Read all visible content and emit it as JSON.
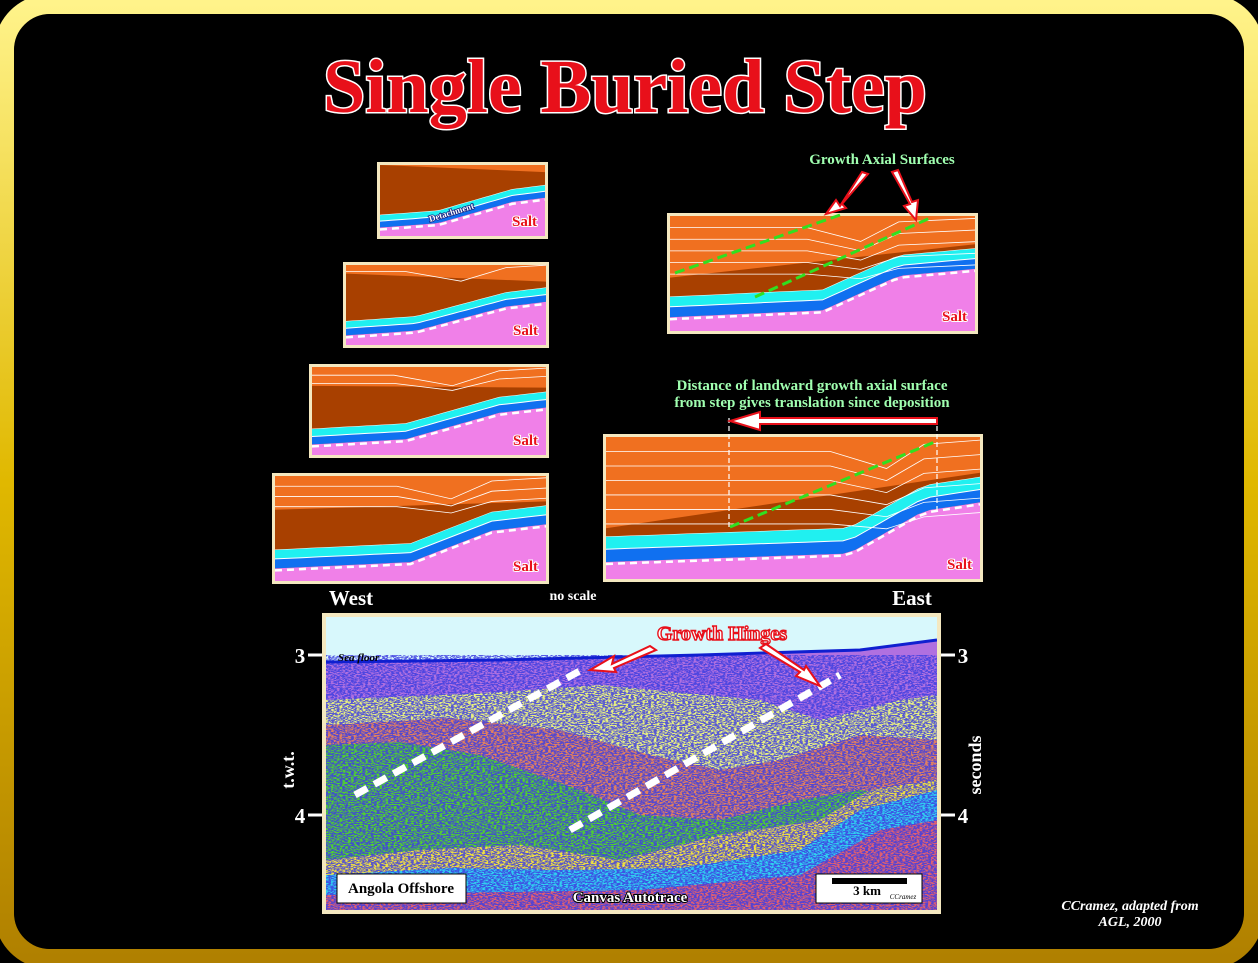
{
  "title": "Single Buried Step",
  "panels": {
    "salt_label": "Salt",
    "detachment_label": "Detachment"
  },
  "annotations": {
    "growth_axial_surfaces": "Growth Axial Surfaces",
    "distance_line1": "Distance of landward growth axial surface",
    "distance_line2": "from step gives translation since deposition",
    "west": "West",
    "east": "East",
    "no_scale": "no scale"
  },
  "seismic": {
    "growth_hinges": "Growth Hinges",
    "sea_floor": "Sea floor",
    "location": "Angola Offshore",
    "method": "Canvas Autotrace",
    "scale_bar": "3 km",
    "scale_credit": "CCramez",
    "left_axis_label": "t.w.t.",
    "right_axis_label": "seconds",
    "ticks": [
      "3",
      "4"
    ]
  },
  "credit": {
    "line1": "CCramez, adapted from",
    "line2": "AGL, 2000"
  },
  "colors": {
    "frame": "#e8c800",
    "title": "#e8101a",
    "salt": "#f080e8",
    "brown": "#a84000",
    "orange": "#f07020",
    "cyan": "#20f0f0",
    "blue": "#1070f0",
    "axial": "#30e020",
    "annotation": "#a0ffb0"
  }
}
